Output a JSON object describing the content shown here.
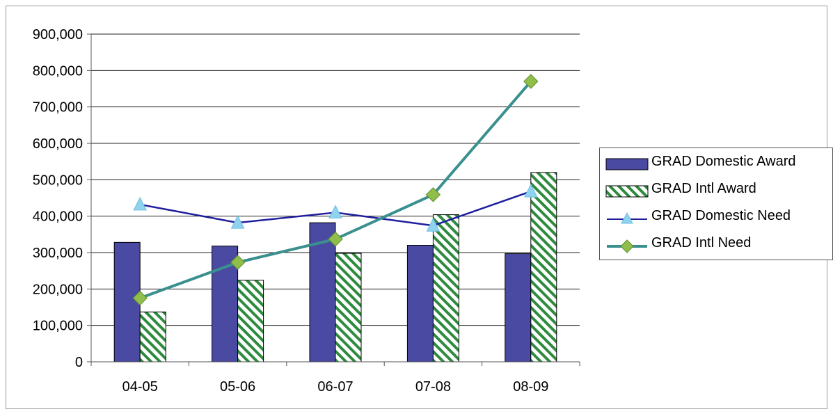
{
  "chart_data": {
    "type": "bar",
    "title": "",
    "xlabel": "",
    "ylabel": "",
    "categories": [
      "04-05",
      "05-06",
      "06-07",
      "07-08",
      "08-09"
    ],
    "ylim": [
      0,
      900000
    ],
    "y_ticks": [
      "0",
      "100,000",
      "200,000",
      "300,000",
      "400,000",
      "500,000",
      "600,000",
      "700,000",
      "800,000",
      "900,000"
    ],
    "y_tick_values": [
      0,
      100000,
      200000,
      300000,
      400000,
      500000,
      600000,
      700000,
      800000,
      900000
    ],
    "grid": true,
    "legend_position": "right",
    "series": [
      {
        "name": "GRAD Domestic Award",
        "kind": "bar",
        "color": "#4b4aa3",
        "values": [
          328000,
          318000,
          382000,
          320000,
          297000
        ]
      },
      {
        "name": "GRAD Intl Award",
        "kind": "bar-hatched",
        "color": "#2e8b3e",
        "values": [
          137000,
          224000,
          298000,
          404000,
          520000
        ]
      },
      {
        "name": "GRAD Domestic Need",
        "kind": "line",
        "marker": "triangle",
        "color": "#1f1f9e",
        "marker_color": "#8fd3f0",
        "values": [
          432000,
          382000,
          410000,
          374000,
          468000
        ]
      },
      {
        "name": "GRAD Intl Need",
        "kind": "line",
        "marker": "diamond",
        "color": "#3a8f8f",
        "marker_color": "#8fbf4a",
        "values": [
          175000,
          273000,
          337000,
          459000,
          770000
        ]
      }
    ]
  }
}
